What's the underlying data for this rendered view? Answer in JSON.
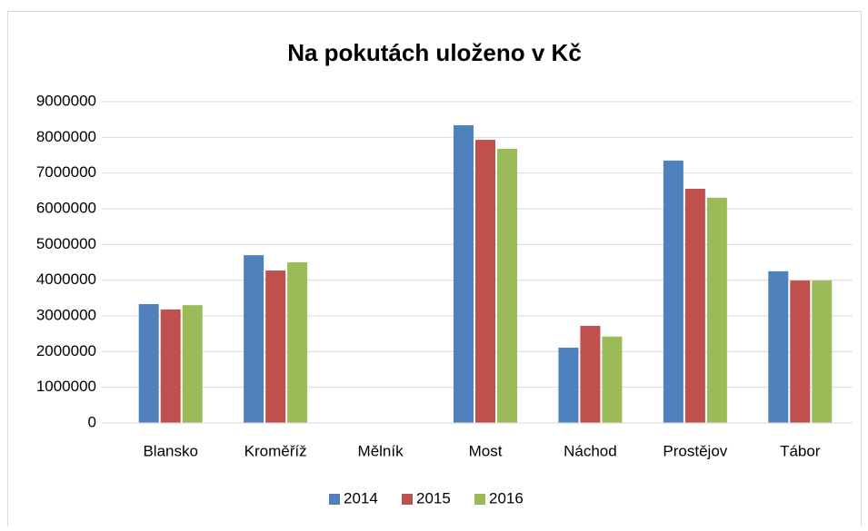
{
  "chart_data": {
    "type": "bar",
    "title": "Na pokutách uloženo v Kč",
    "categories": [
      "Blansko",
      "Kroměříž",
      "Mělník",
      "Most",
      "Náchod",
      "Prostějov",
      "Tábor"
    ],
    "series": [
      {
        "name": "2014",
        "color": "#4f81bd",
        "values": [
          3330000,
          4700000,
          0,
          8340000,
          2110000,
          7350000,
          4250000
        ]
      },
      {
        "name": "2015",
        "color": "#c0504d",
        "values": [
          3180000,
          4270000,
          0,
          7930000,
          2720000,
          6560000,
          3990000
        ]
      },
      {
        "name": "2016",
        "color": "#9bbb59",
        "values": [
          3300000,
          4500000,
          0,
          7680000,
          2420000,
          6310000,
          3990000
        ]
      }
    ],
    "ylim": [
      0,
      9000000
    ],
    "yticks": [
      0,
      1000000,
      2000000,
      3000000,
      4000000,
      5000000,
      6000000,
      7000000,
      8000000,
      9000000
    ],
    "grid": true,
    "legend": "bottom"
  }
}
